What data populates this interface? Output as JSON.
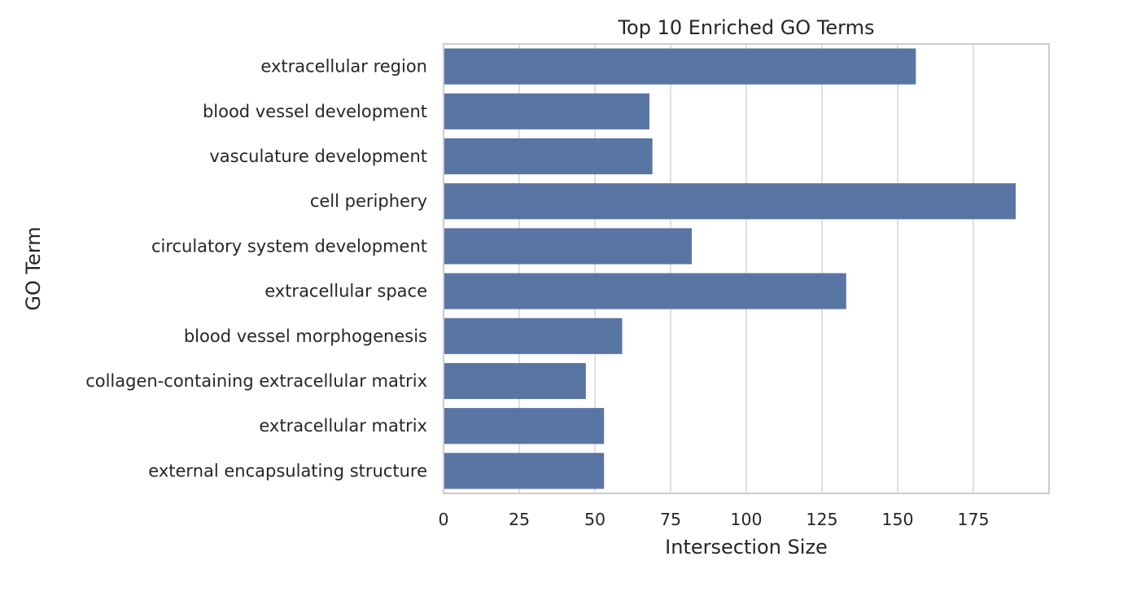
{
  "chart_data": {
    "type": "bar",
    "orientation": "horizontal",
    "title": "Top 10 Enriched GO Terms",
    "xlabel": "Intersection Size",
    "ylabel": "GO Term",
    "categories": [
      "extracellular region",
      "blood vessel development",
      "vasculature development",
      "cell periphery",
      "circulatory system development",
      "extracellular space",
      "blood vessel morphogenesis",
      "collagen-containing extracellular matrix",
      "extracellular matrix",
      "external encapsulating structure"
    ],
    "values": [
      156,
      68,
      69,
      189,
      82,
      133,
      59,
      47,
      53,
      53
    ],
    "xticks": [
      0,
      25,
      50,
      75,
      100,
      125,
      150,
      175
    ],
    "xlim": [
      0,
      200
    ],
    "grid": "vertical",
    "bar_color": "#5975a4",
    "grid_color": "#d9d9d9",
    "frame_color": "#cccccc"
  }
}
